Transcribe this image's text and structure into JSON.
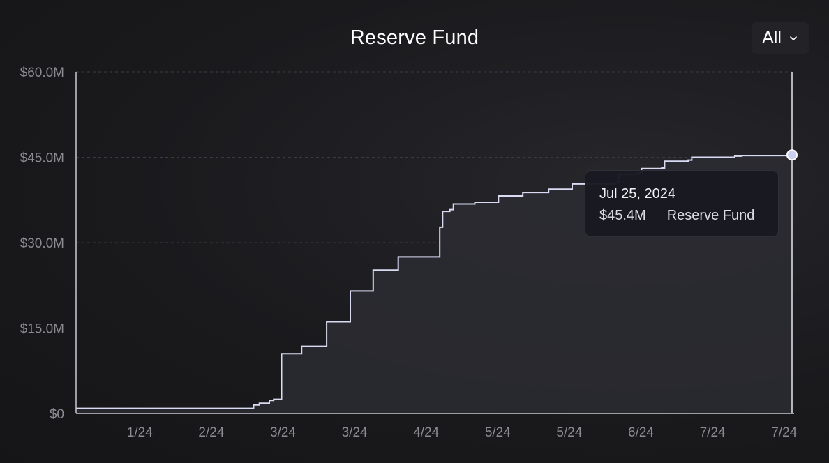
{
  "title": "Reserve Fund",
  "range_selector": {
    "selected": "All",
    "icon": "chevron-down-icon"
  },
  "tooltip": {
    "date": "Jul 25, 2024",
    "value": "$45.4M",
    "series": "Reserve Fund"
  },
  "colors": {
    "background": "#1a1a1d",
    "line": "#d8dbf2",
    "fill": "#2c2c33",
    "grid": "#3a3a42",
    "axis": "#c9c9d0"
  },
  "chart_data": {
    "type": "area",
    "title": "Reserve Fund",
    "xlabel": "",
    "ylabel": "",
    "y_unit": "$M",
    "ylim": [
      0,
      60
    ],
    "y_ticks": [
      0,
      15,
      30,
      45,
      60
    ],
    "y_tick_labels": [
      "$0",
      "$15.0M",
      "$30.0M",
      "$45.0M",
      "$60.0M"
    ],
    "x_tick_labels": [
      "1/24",
      "2/24",
      "3/24",
      "3/24",
      "4/24",
      "5/24",
      "5/24",
      "6/24",
      "7/24",
      "7/24"
    ],
    "x_tick_positions": [
      0.089,
      0.189,
      0.289,
      0.389,
      0.489,
      0.589,
      0.689,
      0.789,
      0.889,
      0.989
    ],
    "grid": "horizontal-dashed",
    "step": true,
    "series": [
      {
        "name": "Reserve Fund",
        "x": [
          0.0,
          0.242,
          0.248,
          0.256,
          0.27,
          0.276,
          0.283,
          0.287,
          0.315,
          0.32,
          0.35,
          0.355,
          0.383,
          0.388,
          0.415,
          0.421,
          0.45,
          0.455,
          0.508,
          0.512,
          0.522,
          0.527,
          0.552,
          0.557,
          0.585,
          0.59,
          0.618,
          0.624,
          0.655,
          0.66,
          0.688,
          0.693,
          0.753,
          0.758,
          0.785,
          0.79,
          0.818,
          0.822,
          0.855,
          0.86,
          0.92,
          0.93,
          0.96,
          1.0
        ],
        "y": [
          0.9,
          0.9,
          1.5,
          1.8,
          2.3,
          2.5,
          2.5,
          10.5,
          11.8,
          11.8,
          16.1,
          16.1,
          21.5,
          21.5,
          25.2,
          25.2,
          27.5,
          27.5,
          32.7,
          35.5,
          35.8,
          36.8,
          36.8,
          37.1,
          37.1,
          38.2,
          38.2,
          38.8,
          38.8,
          39.4,
          39.4,
          40.3,
          40.6,
          42.0,
          42.3,
          43.0,
          43.1,
          44.3,
          44.5,
          45.0,
          45.2,
          45.3,
          45.3,
          45.4
        ]
      }
    ],
    "highlight": {
      "x": 1.0,
      "y": 45.4,
      "label": "Jul 25, 2024"
    }
  }
}
